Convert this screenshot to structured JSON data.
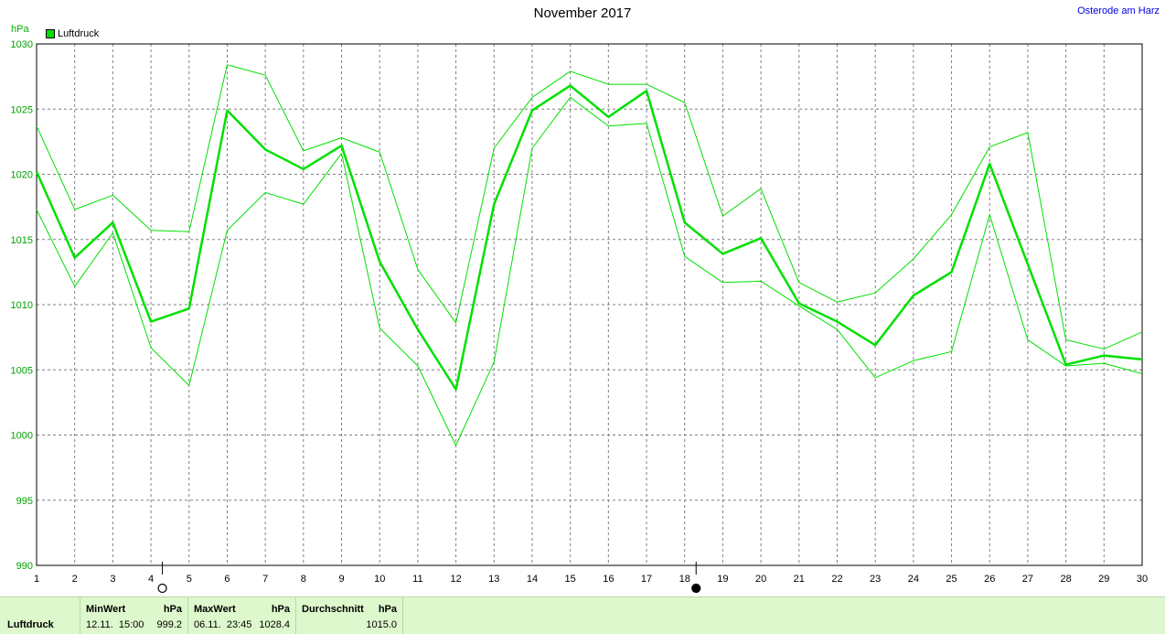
{
  "title": "November 2017",
  "location": "Osterode am Harz",
  "unit_label": "hPa",
  "legend_label": "Luftdruck",
  "colors": {
    "series": "#00e000",
    "grid": "#808080",
    "axis_text": "#00a000"
  },
  "chart_data": {
    "type": "line",
    "title": "November 2017",
    "ylabel": "hPa",
    "ylim": [
      990,
      1030
    ],
    "yticks": [
      990,
      995,
      1000,
      1005,
      1010,
      1015,
      1020,
      1025,
      1030
    ],
    "x": [
      1,
      2,
      3,
      4,
      5,
      6,
      7,
      8,
      9,
      10,
      11,
      12,
      13,
      14,
      15,
      16,
      17,
      18,
      19,
      20,
      21,
      22,
      23,
      24,
      25,
      26,
      27,
      28,
      29,
      30
    ],
    "series": [
      {
        "name": "Luftdruck",
        "role": "mean",
        "values": [
          1020.2,
          1013.6,
          1016.3,
          1008.7,
          1009.7,
          1024.9,
          1021.9,
          1020.4,
          1022.2,
          1013.3,
          1008.1,
          1003.5,
          1017.7,
          1024.9,
          1026.8,
          1024.4,
          1026.4,
          1016.3,
          1013.9,
          1015.1,
          1010.1,
          1008.7,
          1006.9,
          1010.7,
          1012.5,
          1020.8,
          1013.1,
          1005.4,
          1006.1,
          1005.8
        ]
      },
      {
        "name": "",
        "role": "max",
        "values": [
          1023.7,
          1017.3,
          1018.4,
          1015.7,
          1015.6,
          1028.4,
          1027.6,
          1021.8,
          1022.8,
          1021.7,
          1012.7,
          1008.6,
          1022.0,
          1025.9,
          1027.9,
          1026.9,
          1026.9,
          1025.5,
          1016.8,
          1018.9,
          1011.7,
          1010.2,
          1010.9,
          1013.5,
          1016.9,
          1022.1,
          1023.2,
          1007.3,
          1006.6,
          1007.9
        ]
      },
      {
        "name": "",
        "role": "min",
        "values": [
          1017.3,
          1011.4,
          1015.5,
          1006.7,
          1003.8,
          1015.7,
          1018.6,
          1017.7,
          1021.6,
          1008.2,
          1005.3,
          999.2,
          1005.6,
          1022.0,
          1025.9,
          1023.7,
          1023.9,
          1013.7,
          1011.7,
          1011.8,
          1009.9,
          1008.1,
          1004.4,
          1005.7,
          1006.4,
          1016.9,
          1007.3,
          1005.3,
          1005.5,
          1004.7
        ]
      }
    ],
    "grid": true,
    "legend_position": "top-left",
    "moon_markers": [
      {
        "day": 4,
        "phase": "full"
      },
      {
        "day": 18,
        "phase": "new"
      }
    ]
  },
  "footer": {
    "label": "Luftdruck",
    "min": {
      "header": "MinWert",
      "unit": "hPa",
      "when": "12.11.  15:00",
      "value": "999.2"
    },
    "max": {
      "header": "MaxWert",
      "unit": "hPa",
      "when": "06.11.  23:45",
      "value": "1028.4"
    },
    "avg": {
      "header": "Durchschnitt",
      "unit": "hPa",
      "value": "1015.0"
    }
  }
}
